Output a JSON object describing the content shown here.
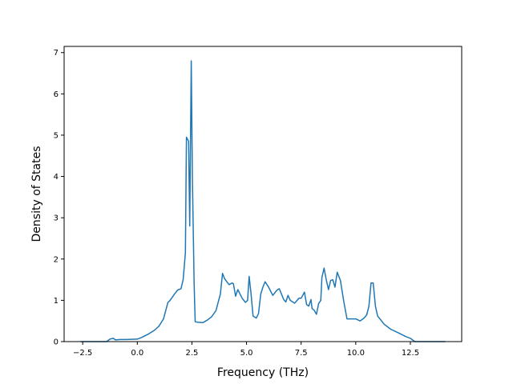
{
  "chart_data": {
    "type": "line",
    "title": "",
    "xlabel": "Frequency (THz)",
    "ylabel": "Density of States",
    "xlim": [
      -3.35,
      14.85
    ],
    "ylim": [
      0,
      7.15
    ],
    "x_ticks": [
      -2.5,
      0.0,
      2.5,
      5.0,
      7.5,
      10.0,
      12.5
    ],
    "x_tick_labels": [
      "−2.5",
      "0.0",
      "2.5",
      "5.0",
      "7.5",
      "10.0",
      "12.5"
    ],
    "y_ticks": [
      0,
      1,
      2,
      3,
      4,
      5,
      6,
      7
    ],
    "y_tick_labels": [
      "0",
      "1",
      "2",
      "3",
      "4",
      "5",
      "6",
      "7"
    ],
    "grid": false,
    "legend": "none",
    "series": [
      {
        "color": "#1f77b4",
        "x": [
          -2.6,
          -1.4,
          -1.25,
          -1.1,
          -1.0,
          -0.8,
          -0.5,
          0.0,
          0.2,
          0.5,
          0.8,
          1.0,
          1.2,
          1.4,
          1.5,
          1.7,
          1.85,
          2.0,
          2.1,
          2.2,
          2.25,
          2.3,
          2.35,
          2.4,
          2.47,
          2.52,
          2.6,
          2.65,
          2.75,
          3.0,
          3.2,
          3.4,
          3.6,
          3.8,
          3.9,
          4.0,
          4.2,
          4.35,
          4.4,
          4.5,
          4.6,
          4.8,
          4.95,
          5.05,
          5.12,
          5.2,
          5.3,
          5.45,
          5.55,
          5.65,
          5.75,
          5.85,
          6.0,
          6.2,
          6.4,
          6.5,
          6.6,
          6.7,
          6.8,
          6.9,
          7.0,
          7.2,
          7.4,
          7.5,
          7.55,
          7.65,
          7.75,
          7.85,
          7.95,
          8.0,
          8.1,
          8.2,
          8.3,
          8.4,
          8.45,
          8.55,
          8.65,
          8.75,
          8.85,
          8.95,
          9.05,
          9.15,
          9.3,
          9.45,
          9.6,
          10.0,
          10.2,
          10.4,
          10.5,
          10.6,
          10.7,
          10.8,
          10.9,
          11.0,
          11.3,
          11.6,
          12.0,
          12.3,
          12.5,
          12.7,
          13.0,
          14.1
        ],
        "y": [
          0.0,
          0.0,
          0.06,
          0.08,
          0.04,
          0.05,
          0.05,
          0.06,
          0.1,
          0.18,
          0.28,
          0.38,
          0.55,
          0.95,
          1.0,
          1.15,
          1.25,
          1.28,
          1.5,
          2.15,
          4.95,
          4.9,
          4.85,
          2.8,
          6.8,
          4.0,
          1.4,
          0.48,
          0.47,
          0.46,
          0.52,
          0.6,
          0.75,
          1.15,
          1.65,
          1.52,
          1.38,
          1.42,
          1.4,
          1.1,
          1.26,
          1.05,
          0.95,
          1.0,
          1.58,
          1.2,
          0.62,
          0.57,
          0.68,
          1.15,
          1.32,
          1.45,
          1.33,
          1.12,
          1.25,
          1.28,
          1.15,
          1.02,
          0.96,
          1.12,
          1.0,
          0.93,
          1.05,
          1.05,
          1.1,
          1.2,
          0.9,
          0.86,
          1.02,
          0.8,
          0.76,
          0.66,
          0.92,
          1.0,
          1.55,
          1.78,
          1.5,
          1.26,
          1.48,
          1.5,
          1.32,
          1.68,
          1.48,
          0.98,
          0.55,
          0.55,
          0.5,
          0.58,
          0.65,
          0.85,
          1.42,
          1.42,
          0.85,
          0.62,
          0.42,
          0.3,
          0.2,
          0.12,
          0.08,
          0.0,
          0.0,
          0.0
        ]
      }
    ]
  }
}
